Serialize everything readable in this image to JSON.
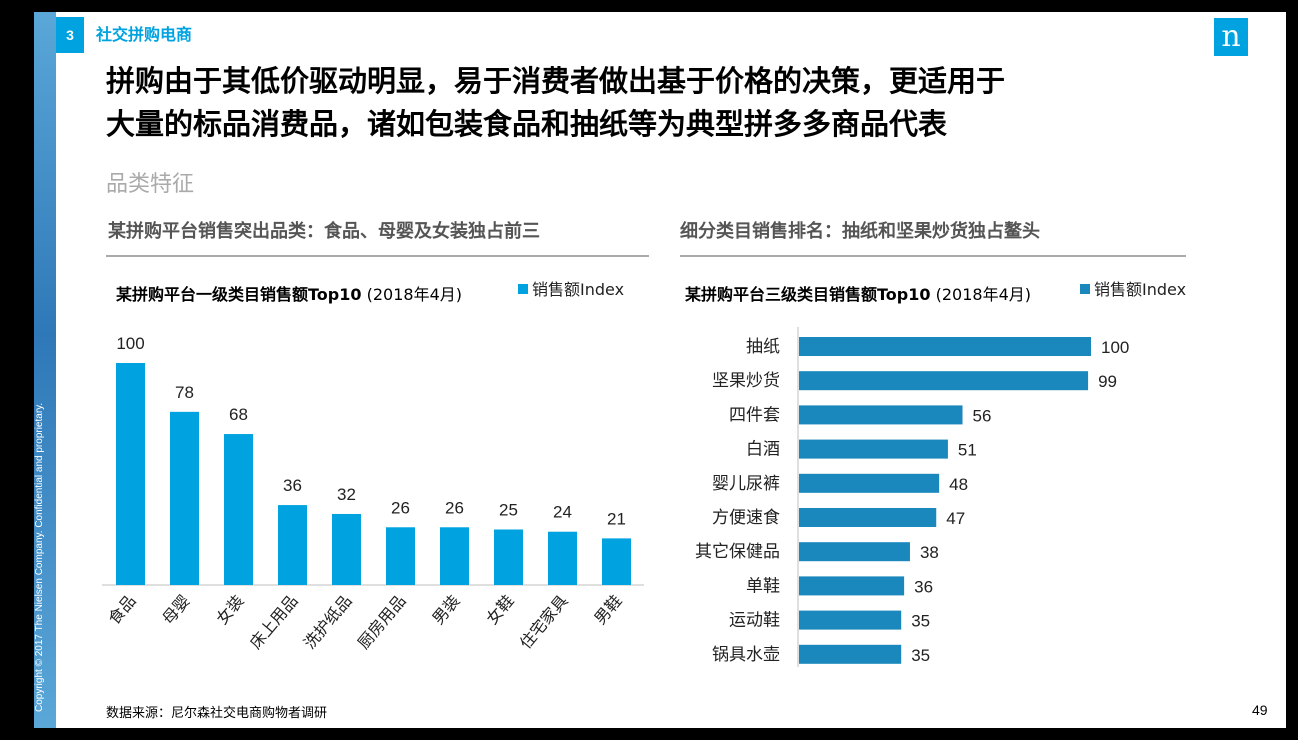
{
  "header": {
    "section_number": "3",
    "section_title": "社交拼购电商",
    "logo_letter": "n",
    "copyright": "Copyright © 2017 The Nielsen Company. Confidential and proprietary."
  },
  "headline": {
    "line1": "拼购由于其低价驱动明显，易于消费者做出基于价格的决策，更适用于",
    "line2": "大量的标品消费品，诸如包装食品和抽纸等为典型拼多多商品代表"
  },
  "subheading": "品类特征",
  "left_panel": {
    "title": "某拼购平台销售突出品类：食品、母婴及女装独占前三",
    "chart_title": "某拼购平台一级类目销售额Top10",
    "chart_subtitle": " (2018年4月)",
    "legend": "销售额Index"
  },
  "right_panel": {
    "title": "细分类目销售排名：抽纸和坚果炒货独占鳌头",
    "chart_title": "某拼购平台三级类目销售额Top10",
    "chart_subtitle": "  (2018年4月)",
    "legend": "销售额Index"
  },
  "chart_data": [
    {
      "type": "bar",
      "orientation": "vertical",
      "categories": [
        "食品",
        "母婴",
        "女装",
        "床上用品",
        "洗护纸品",
        "厨房用品",
        "男装",
        "女鞋",
        "住宅家具",
        "男鞋"
      ],
      "values": [
        100,
        78,
        68,
        36,
        32,
        26,
        26,
        25,
        24,
        21
      ],
      "color": "#00a3e0",
      "ylim": [
        0,
        100
      ]
    },
    {
      "type": "bar",
      "orientation": "horizontal",
      "categories": [
        "抽纸",
        "坚果炒货",
        "四件套",
        "白酒",
        "婴儿尿裤",
        "方便速食",
        "其它保健品",
        "单鞋",
        "运动鞋",
        "锅具水壶"
      ],
      "values": [
        100,
        99,
        56,
        51,
        48,
        47,
        38,
        36,
        35,
        35
      ],
      "color": "#1a87bd",
      "xlim": [
        0,
        100
      ]
    }
  ],
  "footer": {
    "source": "数据来源：尼尔森社交电商购物者调研",
    "page_number": "49"
  }
}
